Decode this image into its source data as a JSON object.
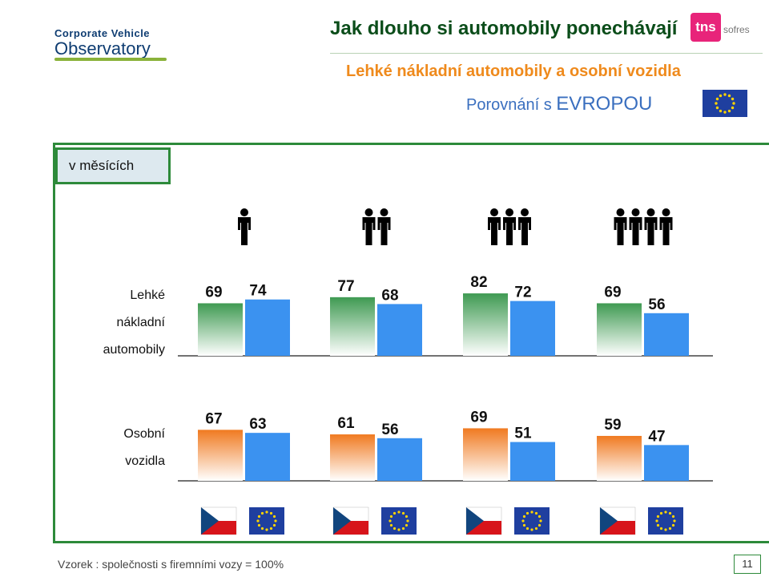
{
  "header": {
    "logo_line1": "Corporate Vehicle",
    "logo_line2": "Observatory",
    "title": "Jak dlouho si automobily ponechávají",
    "brand": "tns",
    "brand_sub": "sofres",
    "subtitle": "Lehké nákladní automobily a osobní vozidla",
    "compare_prefix": "Porovnání s",
    "compare_region": "EVROPOU"
  },
  "unit_label": "v měsících",
  "row_labels": {
    "lcv_line1": "Lehké",
    "lcv_line2": "nákladní",
    "lcv_line3": "automobily",
    "cars_line1": "Osobní",
    "cars_line2": "vozidla"
  },
  "footer": {
    "base": "Vzorek : společnosti s firemními vozy = 100%",
    "page": "11"
  },
  "icons": {
    "group_icons": "person-icon",
    "country_flag": "czech-flag-icon",
    "eu_flag": "eu-flag-icon"
  },
  "colors": {
    "title_green": "#0b4d1a",
    "subtitle_orange": "#ef8a1c",
    "europe_blue": "#3a6fbf",
    "frame_green": "#2d8a3a",
    "lcv_czech_bar": "#3f9a52",
    "car_czech_bar": "#f07a20",
    "eu_bar": "#3b92f0"
  },
  "chart_data": [
    {
      "type": "bar",
      "categories": [
        "1",
        "2",
        "3",
        "4"
      ],
      "series": [
        {
          "values": [
            69,
            77,
            82,
            69
          ]
        },
        {
          "values": [
            74,
            68,
            72,
            56
          ]
        }
      ],
      "unit": "v měsících"
    },
    {
      "type": "bar",
      "categories": [
        "1",
        "2",
        "3",
        "4"
      ],
      "series": [
        {
          "values": [
            67,
            61,
            69,
            59
          ]
        },
        {
          "values": [
            63,
            56,
            51,
            47
          ]
        }
      ],
      "unit": "v měsících"
    }
  ]
}
